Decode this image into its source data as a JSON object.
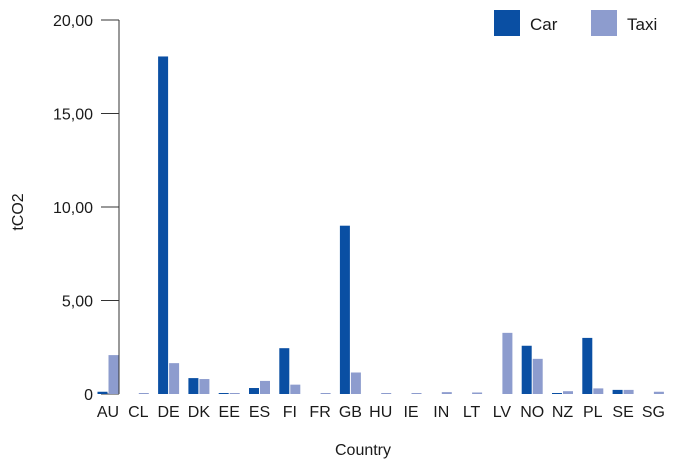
{
  "chart_data": {
    "type": "bar",
    "xlabel": "Country",
    "ylabel": "tCO2",
    "ylim": [
      0,
      20
    ],
    "yticks": [
      "0",
      "5,00",
      "10,00",
      "15,00",
      "20,00"
    ],
    "yticks_values": [
      0,
      5,
      10,
      15,
      20
    ],
    "legend_position": "top-right",
    "grid": false,
    "categories": [
      "AU",
      "CL",
      "DE",
      "DK",
      "EE",
      "ES",
      "FI",
      "FR",
      "GB",
      "HU",
      "IE",
      "IN",
      "LT",
      "LV",
      "NO",
      "NZ",
      "PL",
      "SE",
      "SG"
    ],
    "series": [
      {
        "name": "Car",
        "color": "#0a4fa3",
        "values": [
          0.12,
          0.0,
          18.05,
          0.85,
          0.02,
          0.32,
          2.45,
          0.0,
          9.0,
          0.0,
          0.0,
          0.0,
          0.0,
          0.0,
          2.58,
          0.05,
          3.0,
          0.22,
          0.0
        ]
      },
      {
        "name": "Taxi",
        "color": "#8d9cce",
        "values": [
          2.08,
          0.03,
          1.65,
          0.8,
          0.03,
          0.7,
          0.5,
          0.03,
          1.15,
          0.05,
          0.05,
          0.1,
          0.08,
          3.27,
          1.88,
          0.15,
          0.3,
          0.22,
          0.12
        ]
      }
    ]
  }
}
